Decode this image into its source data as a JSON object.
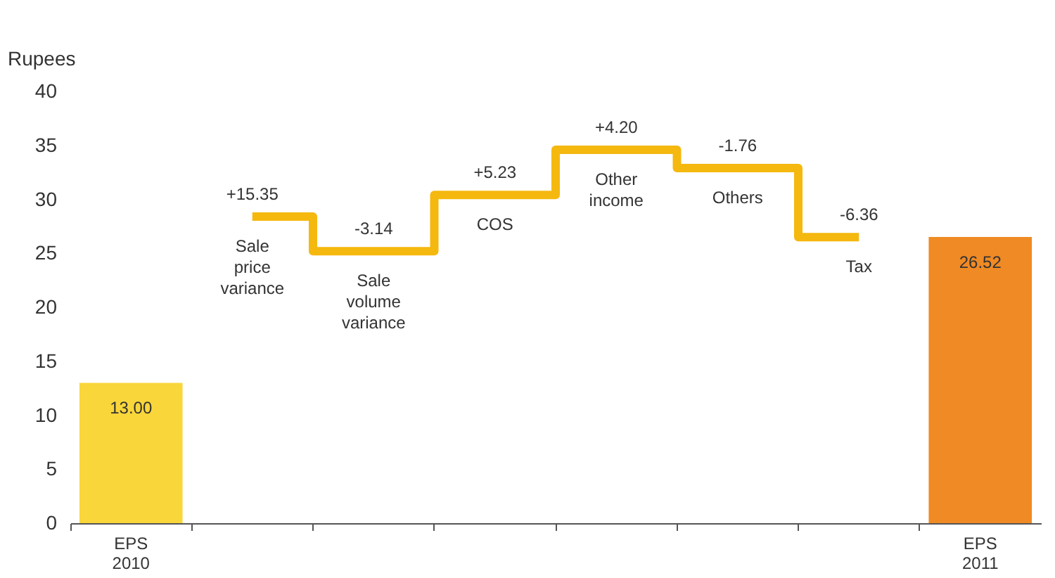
{
  "chart_data": {
    "type": "bar",
    "ylabel": "Rupees",
    "categories": [
      "EPS 2010",
      "Sale price variance",
      "Sale volume variance",
      "COS",
      "Other income",
      "Others",
      "Tax",
      "EPS 2011"
    ],
    "ylim": [
      0,
      40
    ],
    "yticks": [
      0,
      5,
      10,
      15,
      20,
      25,
      30,
      35,
      40
    ],
    "series": [
      {
        "values": [
          13.0,
          null,
          null,
          null,
          null,
          null,
          null,
          26.52
        ],
        "colors": [
          "#f9d63a",
          null,
          null,
          null,
          null,
          null,
          null,
          "#f08a24"
        ],
        "value_labels": [
          "13.00",
          null,
          null,
          null,
          null,
          null,
          null,
          "26.52"
        ]
      },
      {
        "type": "step",
        "color": "#f5b80f",
        "values": [
          null,
          28.4,
          25.2,
          30.4,
          34.6,
          32.9,
          26.5,
          null
        ]
      }
    ],
    "annotations": [
      {
        "text": "+15.35",
        "x": "Sale price variance",
        "y": 28.4
      },
      {
        "text": "-3.14",
        "x": "Sale volume variance",
        "y": 25.2
      },
      {
        "text": "+5.23",
        "x": "COS",
        "y": 30.4
      },
      {
        "text": "+4.20",
        "x": "Other income",
        "y": 34.6
      },
      {
        "text": "-1.76",
        "x": "Others",
        "y": 32.9
      },
      {
        "text": "-6.36",
        "x": "Tax",
        "y": 26.5
      }
    ]
  }
}
